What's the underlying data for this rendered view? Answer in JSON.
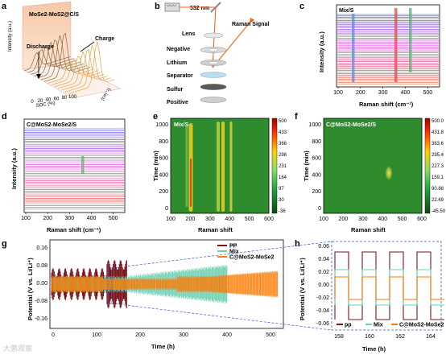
{
  "panels": {
    "a": {
      "label": "a",
      "title": "MoSe2-MoS2@C/S",
      "discharge": "Discharge",
      "charge": "Charge",
      "xlabel": "SOC (%)",
      "ylabel": "Intensity (a.u.)",
      "zlabel": "(cm⁻¹)",
      "xticks": [
        "0",
        "20",
        "40",
        "60",
        "80",
        "100"
      ]
    },
    "b": {
      "label": "b",
      "laser": "532 nm",
      "signal": "Raman Signal",
      "layers": [
        "Lens",
        "Negative",
        "Lithium",
        "Separator",
        "Sulfur",
        "Positive"
      ]
    },
    "c": {
      "label": "c",
      "legend": "Mix/S",
      "ylabel": "Intensity (a.u.)",
      "xlabel": "Raman shift (cm⁻¹)",
      "xticks": [
        "100",
        "200",
        "300",
        "400",
        "500"
      ]
    },
    "d": {
      "label": "d",
      "legend": "C@MoS2-MoSe2/S",
      "ylabel": "Intensity (a.u.)",
      "xlabel": "Raman shift (cm⁻¹)",
      "xticks": [
        "100",
        "200",
        "300",
        "400",
        "500"
      ]
    },
    "e": {
      "label": "e",
      "legend": "Mix/S",
      "ylabel": "Time (min)",
      "xlabel": "Raman shift",
      "xticks": [
        "100",
        "200",
        "300",
        "400",
        "500",
        "600"
      ],
      "yticks": [
        "0",
        "200",
        "400",
        "600",
        "800",
        "1000"
      ],
      "cbar": [
        "500",
        "433",
        "366",
        "298",
        "231",
        "164",
        "97",
        "30",
        "-36"
      ]
    },
    "f": {
      "label": "f",
      "legend": "C@MoS2-MoSe2/S",
      "ylabel": "Time (min)",
      "xlabel": "Raman shift",
      "xticks": [
        "100",
        "200",
        "300",
        "400",
        "500",
        "600"
      ],
      "yticks": [
        "0",
        "200",
        "400",
        "600",
        "800",
        "1000"
      ],
      "cbar": [
        "500.0",
        "431.8",
        "363.6",
        "295.4",
        "227.3",
        "159.1",
        "90.88",
        "22.69",
        "-45.50"
      ]
    },
    "g": {
      "label": "g",
      "ylabel": "Potential (V vs. Li/Li⁺)",
      "xlabel": "Time (h)",
      "xticks": [
        "0",
        "100",
        "200",
        "300",
        "400",
        "500"
      ],
      "yticks": [
        "0.16",
        "0.08",
        "0.00",
        "-0.08",
        "-0.16"
      ],
      "legend": [
        "PP",
        "Mix",
        "C@MoS2-MoSe2"
      ]
    },
    "h": {
      "label": "h",
      "ylabel": "Potential (V vs. Li/Li⁺)",
      "xlabel": "Time (h)",
      "xticks": [
        "158",
        "160",
        "162",
        "164"
      ],
      "yticks": [
        "0.06",
        "0.04",
        "0.02",
        "0.00",
        "-0.02",
        "-0.04",
        "-0.06"
      ],
      "legend": [
        "pp",
        "Mix",
        "C@MoS2-MoSe2"
      ]
    }
  },
  "colors": {
    "pp": "#7a1418",
    "mix": "#6ccfb0",
    "cmos": "#ff7a00",
    "heat_bg": "#2e8b2e",
    "heat_hot": "#f5d020"
  },
  "watermark": "大鹏观察"
}
